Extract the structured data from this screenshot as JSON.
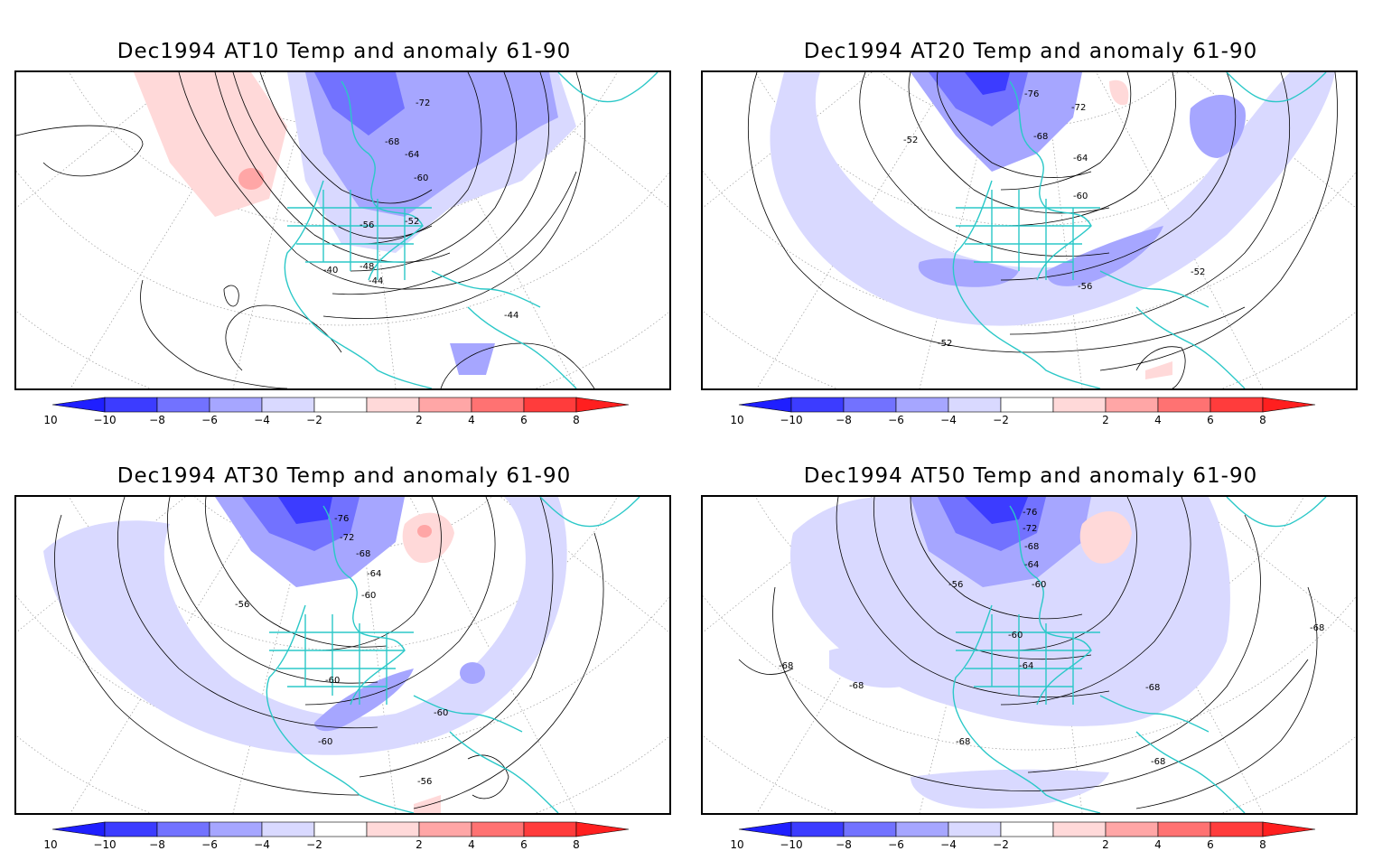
{
  "panels": [
    {
      "title": "Dec1994 AT10 Temp and anomaly 61-90",
      "contour_labels": [
        "-72",
        "-68",
        "-64",
        "-60",
        "-56",
        "-52",
        "-48",
        "-44",
        "-40",
        "-44"
      ]
    },
    {
      "title": "Dec1994 AT20 Temp and anomaly 61-90",
      "contour_labels": [
        "-76",
        "-72",
        "-68",
        "-64",
        "-60",
        "-52",
        "-56",
        "-52",
        "-52"
      ]
    },
    {
      "title": "Dec1994 AT30 Temp and anomaly 61-90",
      "contour_labels": [
        "-76",
        "-72",
        "-68",
        "-64",
        "-60",
        "-56",
        "-60",
        "-60",
        "-60",
        "-56"
      ]
    },
    {
      "title": "Dec1994 AT50 Temp and anomaly 61-90",
      "contour_labels": [
        "-76",
        "-72",
        "-68",
        "-64",
        "-60",
        "-56",
        "-60",
        "-64",
        "-68",
        "-68",
        "-68",
        "-68",
        "-68",
        "-68"
      ]
    }
  ],
  "colorbar": {
    "ticks": [
      "−10",
      "−8",
      "−6",
      "−4",
      "−2",
      "2",
      "4",
      "6",
      "8",
      "10"
    ],
    "colors": [
      "#1f1fff",
      "#3c3cff",
      "#7272ff",
      "#a6a6ff",
      "#d9d9ff",
      "#ffffff",
      "#ffd9d9",
      "#ffa6a6",
      "#ff7272",
      "#ff3c3c",
      "#ff1f1f"
    ]
  },
  "colors": {
    "coastline": "#2bc8c8",
    "contour": "#000000",
    "graticule": "#9a9a9a"
  }
}
